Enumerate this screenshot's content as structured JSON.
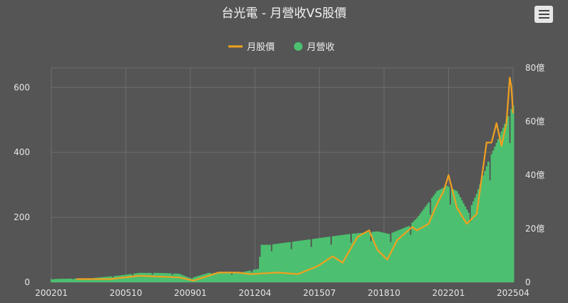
{
  "chart_data": {
    "type": "bar",
    "title": "台光電 - 月營收VS股價",
    "legend": [
      "月股價",
      "月營收"
    ],
    "legend_position": "top-center",
    "grid": true,
    "colors": {
      "price": "#f0a020",
      "revenue": "#4cc070",
      "background": "#555555"
    },
    "x_ticks": [
      "200201",
      "200510",
      "200901",
      "201204",
      "201507",
      "201810",
      "202201",
      "202504"
    ],
    "y_left_ticks": [
      "0",
      "200",
      "400",
      "600"
    ],
    "y_left_range": [
      0,
      660
    ],
    "y_right_ticks": [
      "0",
      "20億",
      "40億",
      "60億",
      "80億"
    ],
    "y_right_range": [
      0,
      80
    ],
    "revenue_series": {
      "name": "月營收",
      "unit": "億",
      "points": [
        [
          "2002-01",
          1.2
        ],
        [
          "2004-01",
          1.5
        ],
        [
          "2005-06",
          2.5
        ],
        [
          "2006-06",
          3.5
        ],
        [
          "2007-06",
          3.5
        ],
        [
          "2008-06",
          3.2
        ],
        [
          "2009-01",
          1.5
        ],
        [
          "2009-12",
          3.5
        ],
        [
          "2011-06",
          3.5
        ],
        [
          "2012-02",
          4.5
        ],
        [
          "2012-06",
          5
        ],
        [
          "2012-08",
          14
        ],
        [
          "2013-01",
          14
        ],
        [
          "2014-01",
          15
        ],
        [
          "2015-01",
          16
        ],
        [
          "2016-01",
          17
        ],
        [
          "2017-01",
          18
        ],
        [
          "2018-06",
          19
        ],
        [
          "2019-01",
          18
        ],
        [
          "2020-01",
          21
        ],
        [
          "2020-06",
          24
        ],
        [
          "2021-06",
          34
        ],
        [
          "2021-12",
          36
        ],
        [
          "2022-06",
          34
        ],
        [
          "2023-01",
          26
        ],
        [
          "2023-06",
          33
        ],
        [
          "2024-01",
          45
        ],
        [
          "2024-06",
          52
        ],
        [
          "2025-01",
          62
        ],
        [
          "2025-04",
          66
        ]
      ]
    },
    "price_series": {
      "name": "月股價",
      "points": [
        [
          "2003-04",
          10
        ],
        [
          "2005-01",
          10
        ],
        [
          "2006-06",
          20
        ],
        [
          "2008-06",
          15
        ],
        [
          "2009-03",
          5
        ],
        [
          "2010-06",
          30
        ],
        [
          "2011-06",
          30
        ],
        [
          "2012-01",
          25
        ],
        [
          "2013-06",
          30
        ],
        [
          "2014-06",
          25
        ],
        [
          "2015-06",
          50
        ],
        [
          "2016-03",
          80
        ],
        [
          "2016-09",
          60
        ],
        [
          "2017-06",
          140
        ],
        [
          "2018-01",
          160
        ],
        [
          "2018-06",
          100
        ],
        [
          "2018-12",
          70
        ],
        [
          "2019-06",
          130
        ],
        [
          "2020-03",
          170
        ],
        [
          "2020-06",
          160
        ],
        [
          "2021-01",
          180
        ],
        [
          "2021-06",
          240
        ],
        [
          "2021-10",
          280
        ],
        [
          "2022-01",
          330
        ],
        [
          "2022-06",
          230
        ],
        [
          "2022-12",
          180
        ],
        [
          "2023-06",
          210
        ],
        [
          "2023-12",
          430
        ],
        [
          "2024-03",
          430
        ],
        [
          "2024-06",
          490
        ],
        [
          "2024-09",
          420
        ],
        [
          "2024-12",
          490
        ],
        [
          "2025-02",
          630
        ],
        [
          "2025-03",
          600
        ],
        [
          "2025-04",
          520
        ]
      ]
    }
  }
}
